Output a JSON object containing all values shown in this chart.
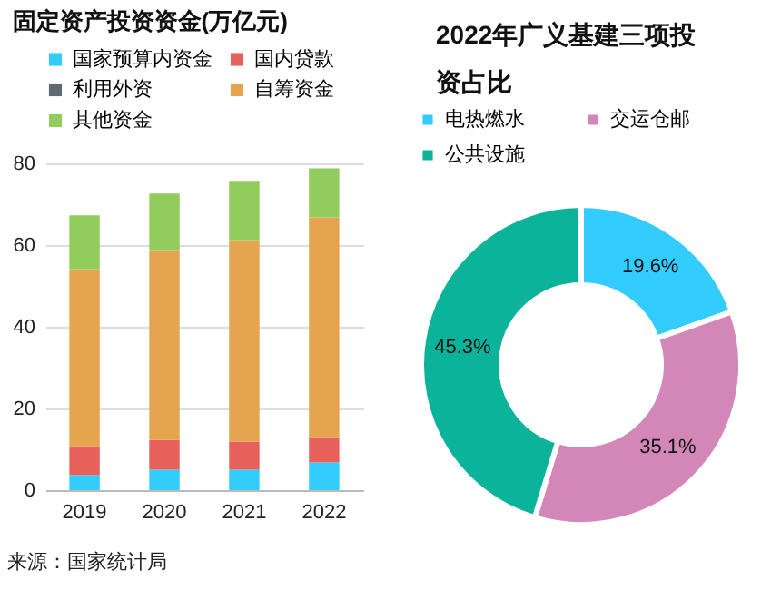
{
  "chart_data": [
    {
      "type": "bar",
      "stacked": true,
      "title": "固定资产投资资金(万亿元)",
      "categories": [
        "2019",
        "2020",
        "2021",
        "2022"
      ],
      "series": [
        {
          "name": "国家预算内资金",
          "color": "#33ccff",
          "values": [
            3.7,
            5.0,
            5.0,
            6.8
          ]
        },
        {
          "name": "国内贷款",
          "color": "#e8605a",
          "values": [
            7.1,
            7.3,
            6.9,
            6.2
          ]
        },
        {
          "name": "利用外资",
          "color": "#5f6b73",
          "values": [
            null,
            null,
            null,
            null
          ]
        },
        {
          "name": "自筹资金",
          "color": "#e5a44e",
          "values": [
            43.3,
            46.5,
            49.3,
            53.8
          ]
        },
        {
          "name": "其他资金",
          "color": "#92cc5c",
          "values": [
            13.2,
            13.8,
            14.5,
            12.0
          ]
        }
      ],
      "ylim": [
        0,
        80
      ],
      "yticks": [
        0,
        20,
        40,
        60,
        80
      ],
      "grid": "y",
      "legend": "top",
      "annotations": [
        "来源：国家统计局"
      ]
    },
    {
      "type": "donut",
      "title": "2022年广义基建三项投资占比",
      "categories": [
        "电热燃水",
        "交运仓邮",
        "公共设施"
      ],
      "values": [
        19.6,
        35.1,
        45.3
      ],
      "colors": [
        "#33ccff",
        "#d387b8",
        "#0bb39a"
      ],
      "value_labels": [
        "19.6%",
        "35.1%",
        "45.3%"
      ],
      "legend": "top"
    }
  ]
}
